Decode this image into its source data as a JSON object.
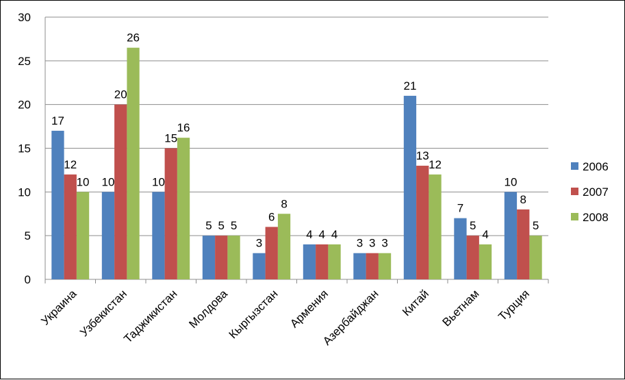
{
  "chart_data": {
    "type": "bar",
    "categories": [
      "Украина",
      "Узбекистан",
      "Таджикистан",
      "Молдова",
      "Кыргызстан",
      "Армения",
      "Азербайджан",
      "Китай",
      "Вьетнам",
      "Турция"
    ],
    "series": [
      {
        "name": "2006",
        "color": "#4F81BD",
        "values": [
          17,
          10,
          10,
          5,
          3,
          4,
          3,
          21,
          7,
          10
        ],
        "labels": [
          "17",
          "10",
          "10",
          "5",
          "3",
          "4",
          "3",
          "21",
          "7",
          "10"
        ]
      },
      {
        "name": "2007",
        "color": "#C0504D",
        "values": [
          12,
          20,
          15,
          5,
          6,
          4,
          3,
          13,
          5,
          8
        ],
        "labels": [
          "12",
          "20",
          "15",
          "5",
          "6",
          "4",
          "3",
          "13",
          "5",
          "8"
        ]
      },
      {
        "name": "2008",
        "color": "#9BBB59",
        "values": [
          10,
          26.5,
          16.2,
          5,
          7.5,
          4,
          3,
          12,
          4,
          5
        ],
        "labels": [
          "10",
          "26",
          "16",
          "5",
          "8",
          "4",
          "3",
          "12",
          "4",
          "5"
        ]
      }
    ],
    "yticks": [
      "0",
      "5",
      "10",
      "15",
      "20",
      "25",
      "30"
    ],
    "ylim": [
      0,
      30
    ],
    "grid": true,
    "legend_position": "right"
  }
}
